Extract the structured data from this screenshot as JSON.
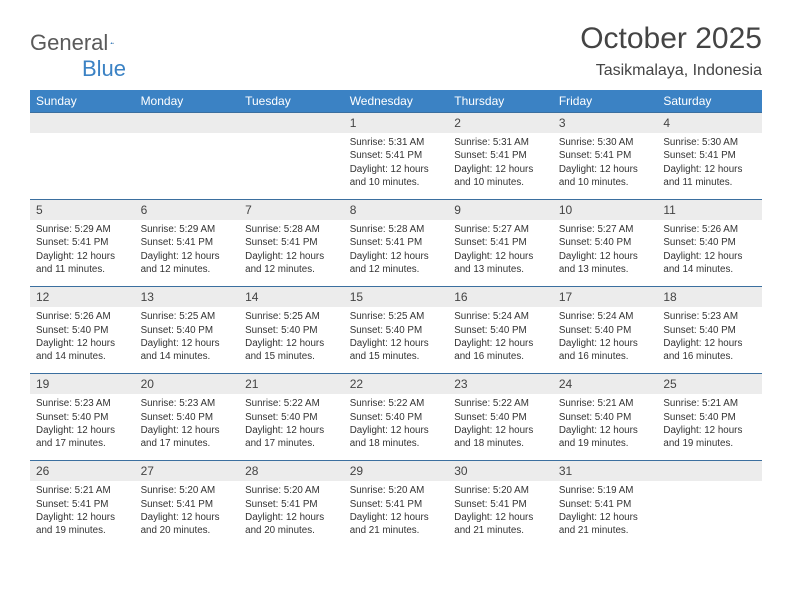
{
  "logo": {
    "general": "General",
    "blue": "Blue"
  },
  "title": "October 2025",
  "subtitle": "Tasikmalaya, Indonesia",
  "colors": {
    "header_bg": "#3b82c4",
    "header_text": "#ffffff",
    "daybar_bg": "#ececec",
    "daybar_border": "#3b6f9f",
    "body_text": "#333333",
    "title_text": "#444444",
    "logo_gray": "#5a5a5a",
    "logo_blue": "#3b82c4"
  },
  "typography": {
    "title_fontsize": 30,
    "subtitle_fontsize": 16,
    "header_fontsize": 12,
    "daynum_fontsize": 12,
    "detail_fontsize": 9.8,
    "font_family": "Arial"
  },
  "days_of_week": [
    "Sunday",
    "Monday",
    "Tuesday",
    "Wednesday",
    "Thursday",
    "Friday",
    "Saturday"
  ],
  "weeks": [
    {
      "nums": [
        "",
        "",
        "",
        "1",
        "2",
        "3",
        "4"
      ],
      "details": [
        "",
        "",
        "",
        "Sunrise: 5:31 AM\nSunset: 5:41 PM\nDaylight: 12 hours and 10 minutes.",
        "Sunrise: 5:31 AM\nSunset: 5:41 PM\nDaylight: 12 hours and 10 minutes.",
        "Sunrise: 5:30 AM\nSunset: 5:41 PM\nDaylight: 12 hours and 10 minutes.",
        "Sunrise: 5:30 AM\nSunset: 5:41 PM\nDaylight: 12 hours and 11 minutes."
      ]
    },
    {
      "nums": [
        "5",
        "6",
        "7",
        "8",
        "9",
        "10",
        "11"
      ],
      "details": [
        "Sunrise: 5:29 AM\nSunset: 5:41 PM\nDaylight: 12 hours and 11 minutes.",
        "Sunrise: 5:29 AM\nSunset: 5:41 PM\nDaylight: 12 hours and 12 minutes.",
        "Sunrise: 5:28 AM\nSunset: 5:41 PM\nDaylight: 12 hours and 12 minutes.",
        "Sunrise: 5:28 AM\nSunset: 5:41 PM\nDaylight: 12 hours and 12 minutes.",
        "Sunrise: 5:27 AM\nSunset: 5:41 PM\nDaylight: 12 hours and 13 minutes.",
        "Sunrise: 5:27 AM\nSunset: 5:40 PM\nDaylight: 12 hours and 13 minutes.",
        "Sunrise: 5:26 AM\nSunset: 5:40 PM\nDaylight: 12 hours and 14 minutes."
      ]
    },
    {
      "nums": [
        "12",
        "13",
        "14",
        "15",
        "16",
        "17",
        "18"
      ],
      "details": [
        "Sunrise: 5:26 AM\nSunset: 5:40 PM\nDaylight: 12 hours and 14 minutes.",
        "Sunrise: 5:25 AM\nSunset: 5:40 PM\nDaylight: 12 hours and 14 minutes.",
        "Sunrise: 5:25 AM\nSunset: 5:40 PM\nDaylight: 12 hours and 15 minutes.",
        "Sunrise: 5:25 AM\nSunset: 5:40 PM\nDaylight: 12 hours and 15 minutes.",
        "Sunrise: 5:24 AM\nSunset: 5:40 PM\nDaylight: 12 hours and 16 minutes.",
        "Sunrise: 5:24 AM\nSunset: 5:40 PM\nDaylight: 12 hours and 16 minutes.",
        "Sunrise: 5:23 AM\nSunset: 5:40 PM\nDaylight: 12 hours and 16 minutes."
      ]
    },
    {
      "nums": [
        "19",
        "20",
        "21",
        "22",
        "23",
        "24",
        "25"
      ],
      "details": [
        "Sunrise: 5:23 AM\nSunset: 5:40 PM\nDaylight: 12 hours and 17 minutes.",
        "Sunrise: 5:23 AM\nSunset: 5:40 PM\nDaylight: 12 hours and 17 minutes.",
        "Sunrise: 5:22 AM\nSunset: 5:40 PM\nDaylight: 12 hours and 17 minutes.",
        "Sunrise: 5:22 AM\nSunset: 5:40 PM\nDaylight: 12 hours and 18 minutes.",
        "Sunrise: 5:22 AM\nSunset: 5:40 PM\nDaylight: 12 hours and 18 minutes.",
        "Sunrise: 5:21 AM\nSunset: 5:40 PM\nDaylight: 12 hours and 19 minutes.",
        "Sunrise: 5:21 AM\nSunset: 5:40 PM\nDaylight: 12 hours and 19 minutes."
      ]
    },
    {
      "nums": [
        "26",
        "27",
        "28",
        "29",
        "30",
        "31",
        ""
      ],
      "details": [
        "Sunrise: 5:21 AM\nSunset: 5:41 PM\nDaylight: 12 hours and 19 minutes.",
        "Sunrise: 5:20 AM\nSunset: 5:41 PM\nDaylight: 12 hours and 20 minutes.",
        "Sunrise: 5:20 AM\nSunset: 5:41 PM\nDaylight: 12 hours and 20 minutes.",
        "Sunrise: 5:20 AM\nSunset: 5:41 PM\nDaylight: 12 hours and 21 minutes.",
        "Sunrise: 5:20 AM\nSunset: 5:41 PM\nDaylight: 12 hours and 21 minutes.",
        "Sunrise: 5:19 AM\nSunset: 5:41 PM\nDaylight: 12 hours and 21 minutes.",
        ""
      ]
    }
  ]
}
